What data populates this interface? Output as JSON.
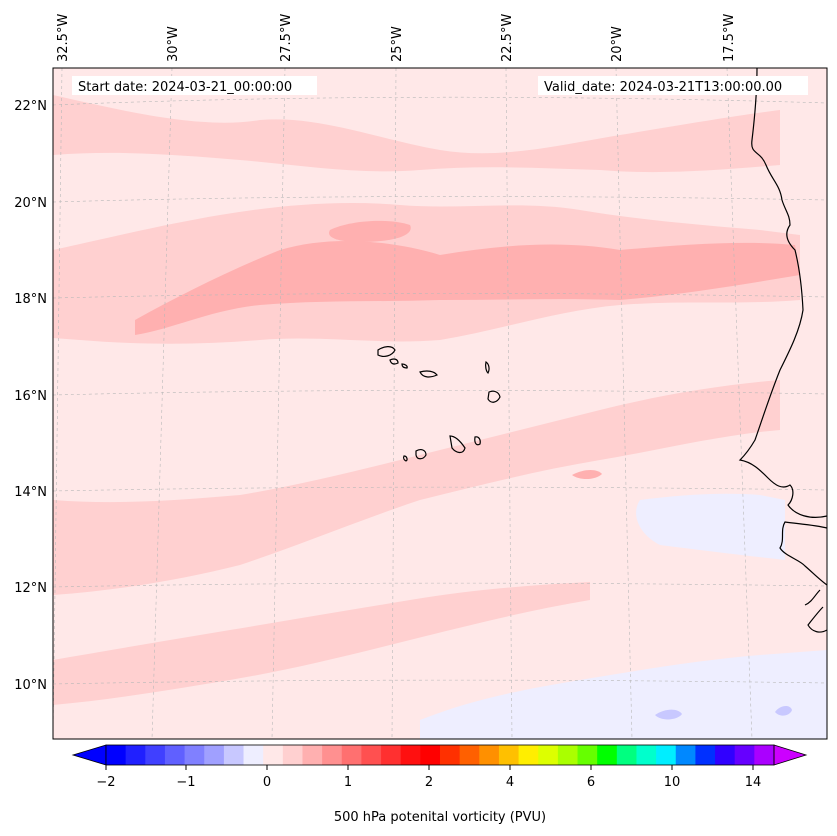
{
  "map": {
    "start_date_label": "Start date: 2024-03-21_00:00:00",
    "valid_date_label": "Valid_date: 2024-03-21T13:00:00.00",
    "lon_ticks": [
      "32.5°W",
      "30°W",
      "27.5°W",
      "25°W",
      "22.5°W",
      "20°W",
      "17.5°W"
    ],
    "lat_ticks": [
      "22°N",
      "20°N",
      "18°N",
      "16°N",
      "14°N",
      "12°N",
      "10°N"
    ],
    "base_color": "#ffe8e8",
    "coastline_color": "#000000"
  },
  "colorbar": {
    "label": "500 hPa potenital vorticity (PVU)",
    "tick_labels": [
      "−2",
      "−1",
      "0",
      "1",
      "2",
      "4",
      "6",
      "10",
      "14"
    ],
    "colors": [
      "#0000ff",
      "#2020ff",
      "#4040ff",
      "#6060ff",
      "#8080ff",
      "#a0a0ff",
      "#c8c8ff",
      "#eeeeff",
      "#ffe8e8",
      "#ffd0d0",
      "#ffb0b0",
      "#ff9090",
      "#ff7070",
      "#ff5050",
      "#ff3030",
      "#ff1010",
      "#ff0000",
      "#ff3000",
      "#ff6000",
      "#ff9000",
      "#ffc000",
      "#ffee00",
      "#ddff00",
      "#aaff00",
      "#66ff00",
      "#00ff00",
      "#00ff80",
      "#00ffcc",
      "#00eeff",
      "#0088ff",
      "#0030ff",
      "#3000ff",
      "#6600ff",
      "#aa00ff"
    ],
    "under_color": "#0000ff",
    "over_color": "#cc00ff"
  }
}
